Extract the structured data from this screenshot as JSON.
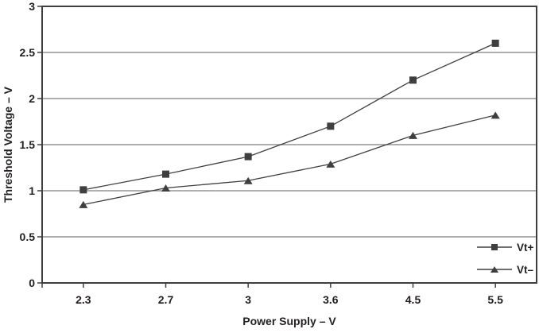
{
  "chart_data": {
    "type": "line",
    "title": "",
    "xlabel": "Power Supply – V",
    "ylabel": "Threshold Voltage – V",
    "categories": [
      "2.3",
      "2.7",
      "3",
      "3.6",
      "4.5",
      "5.5"
    ],
    "x_values": [
      2.3,
      2.7,
      3,
      3.6,
      4.5,
      5.5
    ],
    "series": [
      {
        "name": "Vt+",
        "marker": "square",
        "values": [
          1.01,
          1.18,
          1.37,
          1.7,
          2.2,
          2.6
        ]
      },
      {
        "name": "Vt–",
        "marker": "triangle",
        "values": [
          0.85,
          1.03,
          1.11,
          1.29,
          1.6,
          1.82
        ]
      }
    ],
    "ylim": [
      0,
      3
    ],
    "ytick_labels": [
      "0",
      "0.5",
      "1",
      "1.5",
      "2",
      "2.5",
      "3"
    ],
    "grid": "horizontal",
    "legend_position": "inside-bottom-right",
    "legend_labels": [
      "Vt+",
      "Vt–"
    ],
    "colors": {
      "series": "#3f3f3f",
      "gridline": "#7d7d7d",
      "border": "#3f3f3f",
      "text": "#231f20",
      "background": "#ffffff"
    }
  }
}
